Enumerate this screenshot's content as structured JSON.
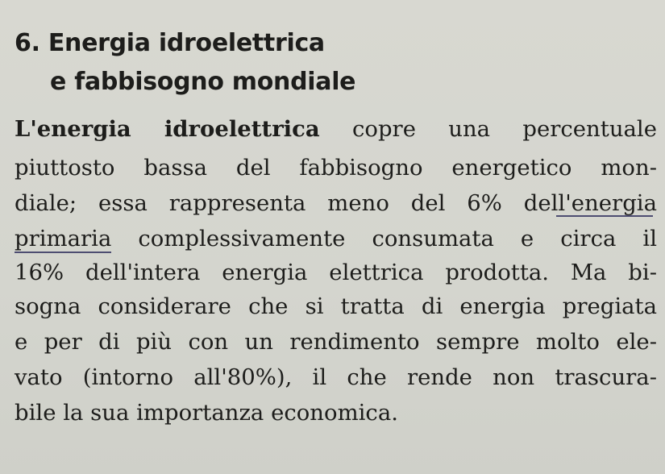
{
  "section": {
    "title_line1": "6. Energia idroelettrica",
    "title_line2": "e fabbisogno mondiale"
  },
  "body": {
    "l1_bold": "L'energia idroelettrica",
    "l1_rest": " copre una percentuale",
    "lines": [
      "piuttosto bassa del fabbisogno energetico mon-",
      "diale; essa rappresenta meno del 6% dell'energia",
      "primaria complessivamente consumata e circa il",
      "16% dell'intera energia elettrica prodotta. Ma bi-",
      "sogna considerare che si tratta di energia pregiata",
      "e per di più con un rendimento sempre molto ele-",
      "vato (intorno all'80%), il che rende non trascura-",
      "bile la sua importanza economica."
    ]
  }
}
